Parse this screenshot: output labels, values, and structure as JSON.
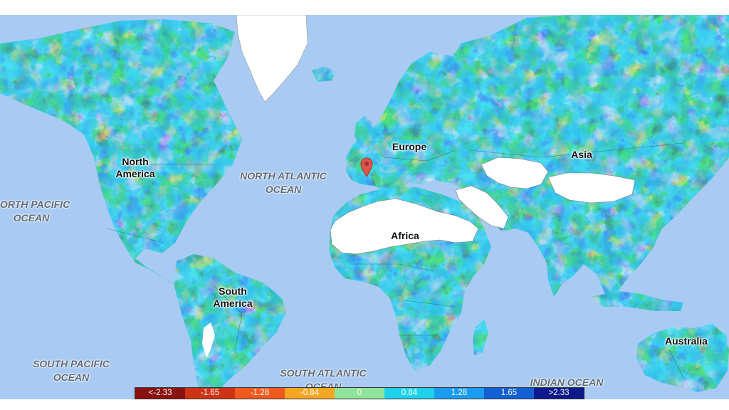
{
  "map": {
    "continents": [
      {
        "name": "north-america",
        "lines": [
          "North",
          "America"
        ]
      },
      {
        "name": "europe",
        "lines": [
          "Europe"
        ]
      },
      {
        "name": "asia",
        "lines": [
          "Asia"
        ]
      },
      {
        "name": "africa",
        "lines": [
          "Africa"
        ]
      },
      {
        "name": "south-america",
        "lines": [
          "South",
          "America"
        ]
      },
      {
        "name": "australia",
        "lines": [
          "Australia"
        ]
      }
    ],
    "oceans": [
      {
        "name": "north-pacific",
        "lines": [
          "NORTH PACIFIC",
          "OCEAN"
        ]
      },
      {
        "name": "north-atlantic",
        "lines": [
          "NORTH ATLANTIC",
          "OCEAN"
        ]
      },
      {
        "name": "south-pacific",
        "lines": [
          "SOUTH PACIFIC",
          "OCEAN"
        ]
      },
      {
        "name": "south-atlantic",
        "lines": [
          "SOUTH ATLANTIC",
          "OCEAN"
        ]
      },
      {
        "name": "indian",
        "lines": [
          "INDIAN OCEAN"
        ]
      }
    ],
    "marker_icon": "map-pin-icon",
    "colors": {
      "ocean": "#a9cbf3",
      "no_data": "#ffffff",
      "marker": "#e0534c"
    }
  },
  "legend": {
    "items": [
      {
        "label": "<-2.33",
        "color": "#8b1010",
        "text_color": "#ffffff"
      },
      {
        "label": "-1.65",
        "color": "#cc3414",
        "text_color": "#ffffff"
      },
      {
        "label": "-1.28",
        "color": "#ef5a1c",
        "text_color": "#ffffff"
      },
      {
        "label": "-0.84",
        "color": "#f5a623",
        "text_color": "#ffffff"
      },
      {
        "label": "0",
        "color": "#8fe39a",
        "text_color": "#ffffff"
      },
      {
        "label": "0.84",
        "color": "#1fd1ec",
        "text_color": "#ffffff"
      },
      {
        "label": "1.28",
        "color": "#1a9cf0",
        "text_color": "#ffffff"
      },
      {
        "label": "1.65",
        "color": "#1160d4",
        "text_color": "#ffffff"
      },
      {
        "label": ">2.33",
        "color": "#0c1a8c",
        "text_color": "#ffffff"
      }
    ]
  }
}
